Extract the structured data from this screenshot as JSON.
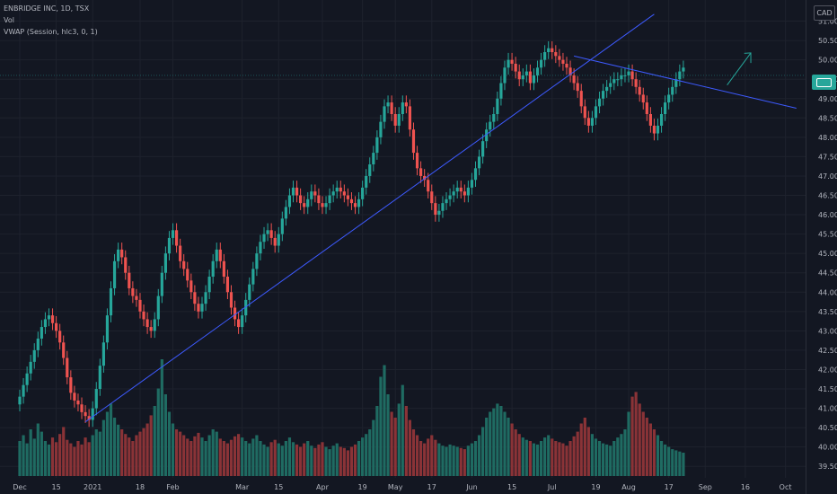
{
  "header": {
    "symbol_line": "ENBRIDGE INC, 1D, TSX",
    "vol_line": "Vol",
    "vwap_line": "VWAP (Session, hlc3, 0, 1)",
    "currency": "CAD"
  },
  "chart_data": {
    "type": "candlestick",
    "ylim": [
      39.25,
      51.5
    ],
    "y_ticks": [
      "39.50",
      "40.00",
      "40.50",
      "41.00",
      "41.50",
      "42.00",
      "42.50",
      "43.00",
      "43.50",
      "44.00",
      "44.50",
      "45.00",
      "45.50",
      "46.00",
      "46.50",
      "47.00",
      "47.50",
      "48.00",
      "48.50",
      "49.00",
      "49.50",
      "50.00",
      "50.50",
      "51.00"
    ],
    "x_ticks": [
      {
        "label": "Dec",
        "pos": 0
      },
      {
        "label": "15",
        "pos": 10
      },
      {
        "label": "2021",
        "pos": 20
      },
      {
        "label": "18",
        "pos": 33
      },
      {
        "label": "Feb",
        "pos": 42
      },
      {
        "label": "Mar",
        "pos": 61
      },
      {
        "label": "15",
        "pos": 71
      },
      {
        "label": "Apr",
        "pos": 83
      },
      {
        "label": "19",
        "pos": 94
      },
      {
        "label": "May",
        "pos": 103
      },
      {
        "label": "17",
        "pos": 113
      },
      {
        "label": "Jun",
        "pos": 124
      },
      {
        "label": "15",
        "pos": 135
      },
      {
        "label": "Jul",
        "pos": 146
      },
      {
        "label": "19",
        "pos": 158
      },
      {
        "label": "Aug",
        "pos": 167
      },
      {
        "label": "17",
        "pos": 178
      },
      {
        "label": "Sep",
        "pos": 188
      },
      {
        "label": "16",
        "pos": 199
      },
      {
        "label": "Oct",
        "pos": 210
      }
    ],
    "close": [
      41.3,
      41.6,
      41.9,
      42.2,
      42.5,
      42.8,
      43.1,
      43.3,
      43.4,
      43.2,
      43.0,
      42.7,
      42.3,
      41.8,
      41.4,
      41.2,
      41.1,
      40.9,
      40.8,
      40.7,
      41.0,
      41.5,
      42.1,
      42.7,
      43.4,
      44.1,
      44.8,
      45.1,
      44.9,
      44.5,
      44.1,
      43.9,
      43.8,
      43.5,
      43.3,
      43.1,
      43.0,
      43.3,
      43.9,
      44.5,
      45.0,
      45.4,
      45.6,
      45.2,
      44.8,
      44.6,
      44.3,
      44.0,
      43.7,
      43.5,
      43.7,
      44.0,
      44.4,
      44.8,
      45.1,
      44.8,
      44.4,
      44.0,
      43.6,
      43.3,
      43.1,
      43.4,
      43.8,
      44.2,
      44.6,
      45.0,
      45.3,
      45.5,
      45.6,
      45.4,
      45.2,
      45.5,
      45.9,
      46.2,
      46.5,
      46.7,
      46.5,
      46.3,
      46.2,
      46.4,
      46.6,
      46.5,
      46.3,
      46.2,
      46.3,
      46.5,
      46.6,
      46.7,
      46.6,
      46.5,
      46.4,
      46.3,
      46.2,
      46.4,
      46.7,
      47.0,
      47.3,
      47.6,
      48.0,
      48.4,
      48.8,
      48.9,
      48.6,
      48.3,
      48.6,
      48.9,
      48.8,
      48.2,
      47.6,
      47.2,
      47.0,
      46.9,
      46.6,
      46.3,
      46.0,
      46.1,
      46.3,
      46.4,
      46.5,
      46.6,
      46.7,
      46.6,
      46.5,
      46.7,
      46.9,
      47.2,
      47.5,
      47.9,
      48.2,
      48.4,
      48.6,
      49.0,
      49.4,
      49.8,
      50.0,
      49.9,
      49.7,
      49.5,
      49.6,
      49.7,
      49.4,
      49.6,
      49.8,
      50.0,
      50.2,
      50.3,
      50.2,
      50.1,
      50.0,
      49.9,
      49.8,
      49.6,
      49.4,
      49.2,
      48.8,
      48.5,
      48.3,
      48.5,
      48.8,
      49.0,
      49.2,
      49.3,
      49.4,
      49.5,
      49.5,
      49.6,
      49.6,
      49.7,
      49.5,
      49.3,
      49.1,
      48.9,
      48.6,
      48.3,
      48.1,
      48.3,
      48.6,
      48.9,
      49.1,
      49.3,
      49.5,
      49.7,
      49.8
    ],
    "volume": [
      0.3,
      0.35,
      0.28,
      0.4,
      0.32,
      0.45,
      0.38,
      0.3,
      0.27,
      0.33,
      0.29,
      0.36,
      0.42,
      0.31,
      0.28,
      0.25,
      0.3,
      0.27,
      0.33,
      0.29,
      0.35,
      0.4,
      0.38,
      0.48,
      0.55,
      0.62,
      0.5,
      0.44,
      0.4,
      0.36,
      0.33,
      0.3,
      0.35,
      0.38,
      0.41,
      0.45,
      0.52,
      0.6,
      0.75,
      1.0,
      0.7,
      0.55,
      0.45,
      0.4,
      0.38,
      0.35,
      0.32,
      0.3,
      0.34,
      0.37,
      0.33,
      0.3,
      0.35,
      0.4,
      0.38,
      0.32,
      0.3,
      0.28,
      0.31,
      0.34,
      0.36,
      0.33,
      0.3,
      0.28,
      0.32,
      0.35,
      0.3,
      0.27,
      0.25,
      0.29,
      0.31,
      0.28,
      0.26,
      0.3,
      0.33,
      0.29,
      0.27,
      0.25,
      0.28,
      0.3,
      0.26,
      0.24,
      0.27,
      0.29,
      0.25,
      0.23,
      0.26,
      0.28,
      0.25,
      0.24,
      0.22,
      0.25,
      0.27,
      0.3,
      0.33,
      0.36,
      0.4,
      0.48,
      0.6,
      0.85,
      0.95,
      0.7,
      0.55,
      0.5,
      0.62,
      0.78,
      0.6,
      0.48,
      0.4,
      0.35,
      0.3,
      0.28,
      0.32,
      0.35,
      0.31,
      0.28,
      0.26,
      0.25,
      0.27,
      0.26,
      0.25,
      0.24,
      0.23,
      0.26,
      0.28,
      0.3,
      0.35,
      0.42,
      0.5,
      0.55,
      0.58,
      0.62,
      0.6,
      0.55,
      0.5,
      0.45,
      0.4,
      0.36,
      0.33,
      0.31,
      0.3,
      0.28,
      0.27,
      0.3,
      0.33,
      0.35,
      0.32,
      0.3,
      0.29,
      0.28,
      0.26,
      0.3,
      0.34,
      0.38,
      0.45,
      0.5,
      0.42,
      0.36,
      0.32,
      0.3,
      0.28,
      0.27,
      0.26,
      0.3,
      0.33,
      0.36,
      0.4,
      0.55,
      0.68,
      0.72,
      0.62,
      0.55,
      0.5,
      0.45,
      0.4,
      0.35,
      0.3,
      0.27,
      0.25,
      0.23,
      0.22,
      0.21,
      0.2
    ]
  }
}
